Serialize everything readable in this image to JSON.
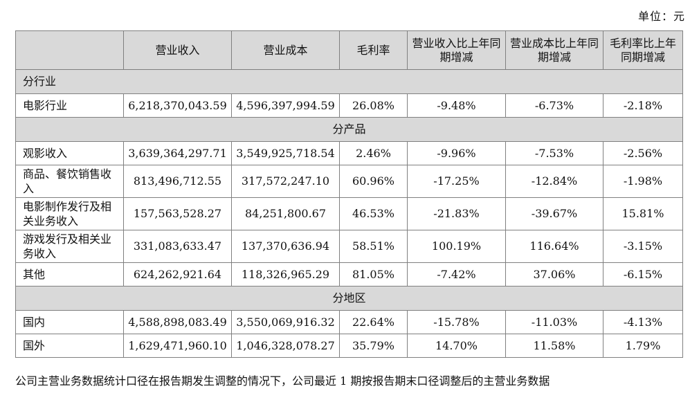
{
  "unit_label": "单位：元",
  "headers": [
    "",
    "营业收入",
    "营业成本",
    "毛利率",
    "营业收入比上年同期增减",
    "营业成本比上年同期增减",
    "毛利率比上年同期增减"
  ],
  "sections": {
    "industry": "分行业",
    "product": "分产品",
    "region": "分地区"
  },
  "rows": {
    "industry": [
      [
        "电影行业",
        "6,218,370,043.59",
        "4,596,397,994.59",
        "26.08%",
        "-9.48%",
        "-6.73%",
        "-2.18%"
      ]
    ],
    "product": [
      [
        "观影收入",
        "3,639,364,297.71",
        "3,549,925,718.54",
        "2.46%",
        "-9.96%",
        "-7.53%",
        "-2.56%"
      ],
      [
        "商品、餐饮销售收入",
        "813,496,712.55",
        "317,572,247.10",
        "60.96%",
        "-17.25%",
        "-12.84%",
        "-1.98%"
      ],
      [
        "电影制作发行及相关业务收入",
        "157,563,528.27",
        "84,251,800.67",
        "46.53%",
        "-21.83%",
        "-39.67%",
        "15.81%"
      ],
      [
        "游戏发行及相关业务收入",
        "331,083,633.47",
        "137,370,636.94",
        "58.51%",
        "100.19%",
        "116.64%",
        "-3.15%"
      ],
      [
        "其他",
        "624,262,921.64",
        "118,326,965.29",
        "81.05%",
        "-7.42%",
        "37.06%",
        "-6.15%"
      ]
    ],
    "region": [
      [
        "国内",
        "4,588,898,083.49",
        "3,550,069,916.32",
        "22.64%",
        "-15.78%",
        "-11.03%",
        "-4.13%"
      ],
      [
        "国外",
        "1,629,471,960.10",
        "1,046,328,078.27",
        "35.79%",
        "14.70%",
        "11.58%",
        "1.79%"
      ]
    ]
  },
  "footnote": "公司主营业务数据统计口径在报告期发生调整的情况下，公司最近 1 期按报告期末口径调整后的主营业务数据"
}
